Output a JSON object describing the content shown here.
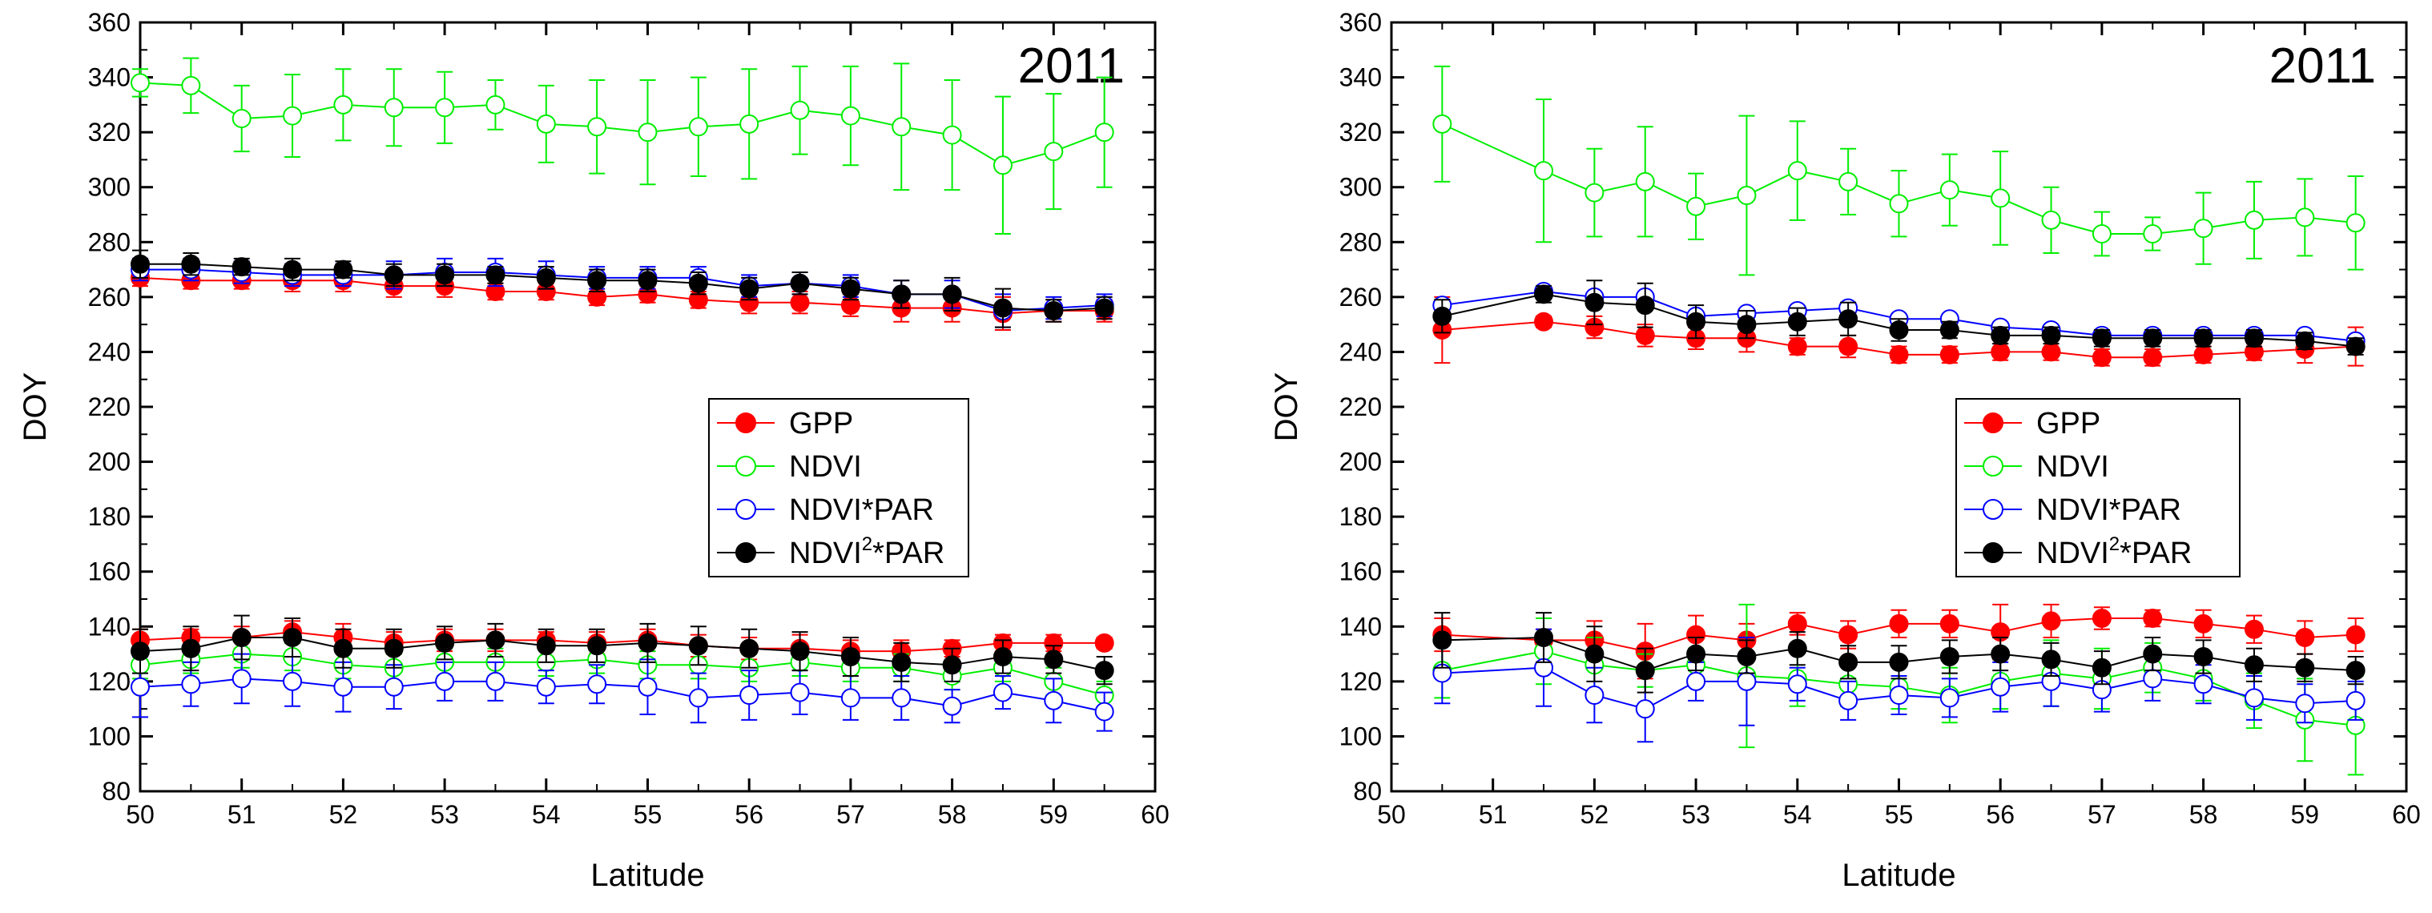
{
  "chart_data": [
    {
      "type": "scatter",
      "title": "2011",
      "xlabel": "Latitude",
      "ylabel": "DOY",
      "xlim": [
        50,
        60
      ],
      "ylim": [
        80,
        360
      ],
      "xticks": [
        50,
        51,
        52,
        53,
        54,
        55,
        56,
        57,
        58,
        59,
        60
      ],
      "yticks": [
        80,
        100,
        120,
        140,
        160,
        180,
        200,
        220,
        240,
        260,
        280,
        300,
        320,
        340,
        360
      ],
      "legend": {
        "position": "center-right",
        "entries": [
          {
            "name": "GPP",
            "color": "#ff0000",
            "filled": true
          },
          {
            "name": "NDVI",
            "color": "#00ee00",
            "filled": false
          },
          {
            "name": "NDVI*PAR",
            "color": "#0000ff",
            "filled": false
          },
          {
            "base": "NDVI",
            "sup": "2",
            "rest": "*PAR",
            "color": "#000000",
            "filled": true
          }
        ]
      },
      "x": [
        50,
        50.5,
        51,
        51.5,
        52,
        52.5,
        53,
        53.5,
        54,
        54.5,
        55,
        55.5,
        56,
        56.5,
        57,
        57.5,
        58,
        58.5,
        59,
        59.5
      ],
      "series": [
        {
          "name": "GPP",
          "group": "autumn",
          "color": "#ff0000",
          "filled": true,
          "values": [
            267,
            266,
            266,
            266,
            266,
            264,
            264,
            262,
            262,
            260,
            261,
            259,
            258,
            258,
            257,
            256,
            256,
            254,
            255,
            255
          ],
          "err": [
            3,
            3,
            3,
            4,
            4,
            4,
            4,
            3,
            3,
            3,
            3,
            3,
            4,
            4,
            4,
            5,
            5,
            6,
            4,
            4
          ]
        },
        {
          "name": "NDVI",
          "group": "autumn",
          "color": "#00ee00",
          "filled": false,
          "values": [
            338,
            337,
            325,
            326,
            330,
            329,
            329,
            330,
            323,
            322,
            320,
            322,
            323,
            328,
            326,
            322,
            319,
            308,
            313,
            320
          ],
          "err": [
            5,
            10,
            12,
            15,
            13,
            14,
            13,
            9,
            14,
            17,
            19,
            18,
            20,
            16,
            18,
            23,
            20,
            25,
            21,
            20
          ]
        },
        {
          "name": "NDVI*PAR",
          "group": "autumn",
          "color": "#0000ff",
          "filled": false,
          "values": [
            270,
            270,
            269,
            268,
            268,
            268,
            269,
            269,
            268,
            267,
            267,
            267,
            264,
            265,
            264,
            261,
            261,
            255,
            256,
            257
          ],
          "err": [
            4,
            4,
            4,
            4,
            4,
            5,
            5,
            5,
            5,
            4,
            4,
            4,
            4,
            4,
            4,
            5,
            5,
            6,
            4,
            4
          ]
        },
        {
          "name": "NDVI2*PAR",
          "group": "autumn",
          "color": "#000000",
          "filled": true,
          "values": [
            272,
            272,
            271,
            270,
            270,
            268,
            268,
            268,
            267,
            266,
            266,
            265,
            263,
            265,
            263,
            261,
            261,
            256,
            255,
            256
          ],
          "err": [
            5,
            4,
            3,
            4,
            3,
            4,
            4,
            3,
            4,
            4,
            4,
            4,
            4,
            4,
            4,
            5,
            6,
            7,
            4,
            4
          ]
        },
        {
          "name": "GPP",
          "group": "spring",
          "color": "#ff0000",
          "filled": true,
          "values": [
            135,
            136,
            136,
            138,
            136,
            134,
            135,
            135,
            135,
            134,
            135,
            133,
            132,
            132,
            131,
            131,
            132,
            134,
            134,
            134
          ],
          "err": [
            4,
            3,
            4,
            4,
            5,
            4,
            4,
            4,
            3,
            4,
            4,
            4,
            4,
            5,
            4,
            4,
            3,
            3,
            3,
            2
          ]
        },
        {
          "name": "NDVI",
          "group": "spring",
          "color": "#00ee00",
          "filled": false,
          "values": [
            126,
            128,
            130,
            129,
            126,
            125,
            127,
            127,
            127,
            128,
            126,
            126,
            125,
            127,
            125,
            125,
            122,
            125,
            120,
            115
          ],
          "err": [
            5,
            5,
            5,
            5,
            5,
            5,
            5,
            5,
            5,
            5,
            5,
            5,
            5,
            5,
            5,
            5,
            5,
            5,
            5,
            5
          ]
        },
        {
          "name": "NDVI*PAR",
          "group": "spring",
          "color": "#0000ff",
          "filled": false,
          "values": [
            118,
            119,
            121,
            120,
            118,
            118,
            120,
            120,
            118,
            119,
            118,
            114,
            115,
            116,
            114,
            114,
            111,
            116,
            113,
            109
          ],
          "err": [
            11,
            8,
            9,
            9,
            9,
            8,
            7,
            7,
            6,
            7,
            10,
            9,
            9,
            8,
            8,
            8,
            6,
            6,
            8,
            7
          ]
        },
        {
          "name": "NDVI2*PAR",
          "group": "spring",
          "color": "#000000",
          "filled": true,
          "values": [
            131,
            132,
            136,
            136,
            132,
            132,
            134,
            135,
            133,
            133,
            134,
            133,
            132,
            131,
            129,
            127,
            126,
            129,
            128,
            124
          ],
          "err": [
            8,
            8,
            8,
            7,
            7,
            7,
            6,
            6,
            6,
            6,
            7,
            7,
            7,
            7,
            7,
            7,
            6,
            6,
            5,
            5
          ]
        }
      ]
    },
    {
      "type": "scatter",
      "title": "2011",
      "xlabel": "Latitude",
      "ylabel": "DOY",
      "xlim": [
        50,
        60
      ],
      "ylim": [
        80,
        360
      ],
      "xticks": [
        50,
        51,
        52,
        53,
        54,
        55,
        56,
        57,
        58,
        59,
        60
      ],
      "yticks": [
        80,
        100,
        120,
        140,
        160,
        180,
        200,
        220,
        240,
        260,
        280,
        300,
        320,
        340,
        360
      ],
      "legend": {
        "position": "center-right",
        "entries": [
          {
            "name": "GPP",
            "color": "#ff0000",
            "filled": true
          },
          {
            "name": "NDVI",
            "color": "#00ee00",
            "filled": false
          },
          {
            "name": "NDVI*PAR",
            "color": "#0000ff",
            "filled": false
          },
          {
            "base": "NDVI",
            "sup": "2",
            "rest": "*PAR",
            "color": "#000000",
            "filled": true
          }
        ]
      },
      "x": [
        50.5,
        51.5,
        52,
        52.5,
        53,
        53.5,
        54,
        54.5,
        55,
        55.5,
        56,
        56.5,
        57,
        57.5,
        58,
        58.5,
        59,
        59.5
      ],
      "series": [
        {
          "name": "GPP",
          "group": "autumn",
          "color": "#ff0000",
          "filled": true,
          "values": [
            248,
            251,
            249,
            246,
            245,
            245,
            242,
            242,
            239,
            239,
            240,
            240,
            238,
            238,
            239,
            240,
            241,
            242
          ],
          "err": [
            12,
            2,
            4,
            4,
            4,
            5,
            3,
            4,
            3,
            3,
            3,
            3,
            3,
            3,
            3,
            3,
            5,
            7
          ]
        },
        {
          "name": "NDVI",
          "group": "autumn",
          "color": "#00ee00",
          "filled": false,
          "values": [
            323,
            306,
            298,
            302,
            293,
            297,
            306,
            302,
            294,
            299,
            296,
            288,
            283,
            283,
            285,
            288,
            289,
            287
          ],
          "err": [
            21,
            26,
            16,
            20,
            12,
            29,
            18,
            12,
            12,
            13,
            17,
            12,
            8,
            6,
            13,
            14,
            14,
            17
          ]
        },
        {
          "name": "NDVI*PAR",
          "group": "autumn",
          "color": "#0000ff",
          "filled": false,
          "values": [
            257,
            262,
            260,
            260,
            253,
            254,
            255,
            256,
            252,
            252,
            249,
            248,
            246,
            246,
            246,
            246,
            246,
            244
          ]
        },
        {
          "name": "NDVI2*PAR",
          "group": "autumn",
          "color": "#000000",
          "filled": true,
          "values": [
            253,
            261,
            258,
            257,
            251,
            250,
            251,
            252,
            248,
            248,
            246,
            246,
            245,
            245,
            245,
            245,
            244,
            242
          ],
          "err": [
            6,
            3,
            8,
            8,
            6,
            5,
            5,
            6,
            4,
            3,
            3,
            3,
            3,
            3,
            3,
            3,
            3,
            3
          ]
        },
        {
          "name": "GPP",
          "group": "spring",
          "color": "#ff0000",
          "filled": true,
          "values": [
            137,
            135,
            135,
            131,
            137,
            135,
            141,
            137,
            141,
            141,
            138,
            142,
            143,
            143,
            141,
            139,
            136,
            137
          ],
          "err": [
            6,
            4,
            7,
            10,
            7,
            6,
            4,
            5,
            5,
            5,
            10,
            6,
            4,
            3,
            5,
            5,
            6,
            6
          ]
        },
        {
          "name": "NDVI",
          "group": "spring",
          "color": "#00ee00",
          "filled": false,
          "values": [
            124,
            131,
            126,
            124,
            126,
            122,
            121,
            119,
            118,
            115,
            120,
            123,
            121,
            125,
            121,
            113,
            106,
            104
          ],
          "err": [
            10,
            12,
            10,
            6,
            6,
            26,
            10,
            8,
            8,
            10,
            10,
            12,
            11,
            9,
            8,
            10,
            15,
            18
          ]
        },
        {
          "name": "NDVI*PAR",
          "group": "spring",
          "color": "#0000ff",
          "filled": false,
          "values": [
            123,
            125,
            115,
            110,
            120,
            120,
            119,
            113,
            115,
            114,
            118,
            120,
            117,
            121,
            119,
            114,
            112,
            113
          ],
          "err": [
            11,
            14,
            10,
            12,
            7,
            16,
            6,
            7,
            7,
            7,
            9,
            9,
            8,
            8,
            7,
            8,
            7,
            7
          ]
        },
        {
          "name": "NDVI2*PAR",
          "group": "spring",
          "color": "#000000",
          "filled": true,
          "values": [
            135,
            136,
            130,
            124,
            130,
            129,
            132,
            127,
            127,
            129,
            130,
            128,
            125,
            130,
            129,
            126,
            125,
            124
          ],
          "err": [
            10,
            9,
            10,
            8,
            6,
            6,
            6,
            6,
            6,
            6,
            6,
            6,
            6,
            6,
            6,
            6,
            5,
            5
          ]
        }
      ]
    }
  ]
}
